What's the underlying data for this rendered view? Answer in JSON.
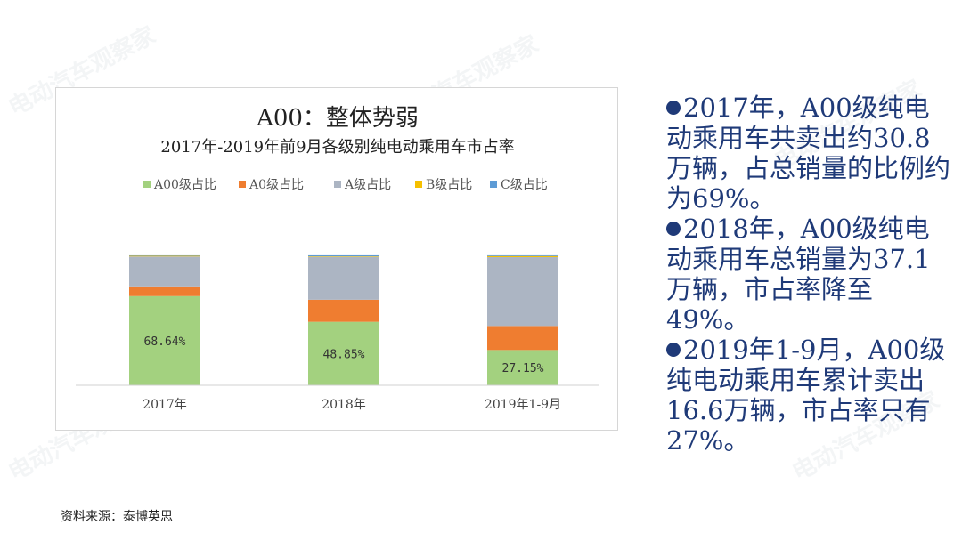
{
  "source_text": "资料来源：泰博英思",
  "watermark_text": "电动汽车观察家",
  "notes": [
    "2017年，A00级纯电动乘用车共卖出约30.8万辆，占总销量的比例约为69%。",
    "2018年，A00级纯电动乘用车总销量为37.1万辆，市占率降至49%。",
    "2019年1-9月，A00级纯电动乘用车累计卖出16.6万辆，市占率只有27%。"
  ],
  "colors": {
    "A00": "#a3d17f",
    "A0": "#ef7d30",
    "A": "#acb5c3",
    "B": "#f6c000",
    "C": "#5d9bd5",
    "note_text": "#1f3a78"
  },
  "chart_data": {
    "type": "bar",
    "stacked": true,
    "title": "A00：整体势弱",
    "subtitle": "2017年-2019年前9月各级别纯电动乘用车市占率",
    "categories": [
      "2017年",
      "2018年",
      "2019年1-9月"
    ],
    "series": [
      {
        "name": "A00级占比",
        "values": [
          68.64,
          48.85,
          27.15
        ],
        "labels": [
          "68.64%",
          "48.85%",
          "27.15%"
        ]
      },
      {
        "name": "A0级占比",
        "values": [
          7.5,
          17.0,
          18.5
        ]
      },
      {
        "name": "A级占比",
        "values": [
          23.0,
          33.0,
          53.0
        ]
      },
      {
        "name": "B级占比",
        "values": [
          0.5,
          0.4,
          0.8
        ]
      },
      {
        "name": "C级占比",
        "values": [
          0.4,
          0.8,
          0.6
        ]
      }
    ],
    "ylim": [
      0,
      100
    ],
    "legend_position": "top",
    "grid": false
  }
}
